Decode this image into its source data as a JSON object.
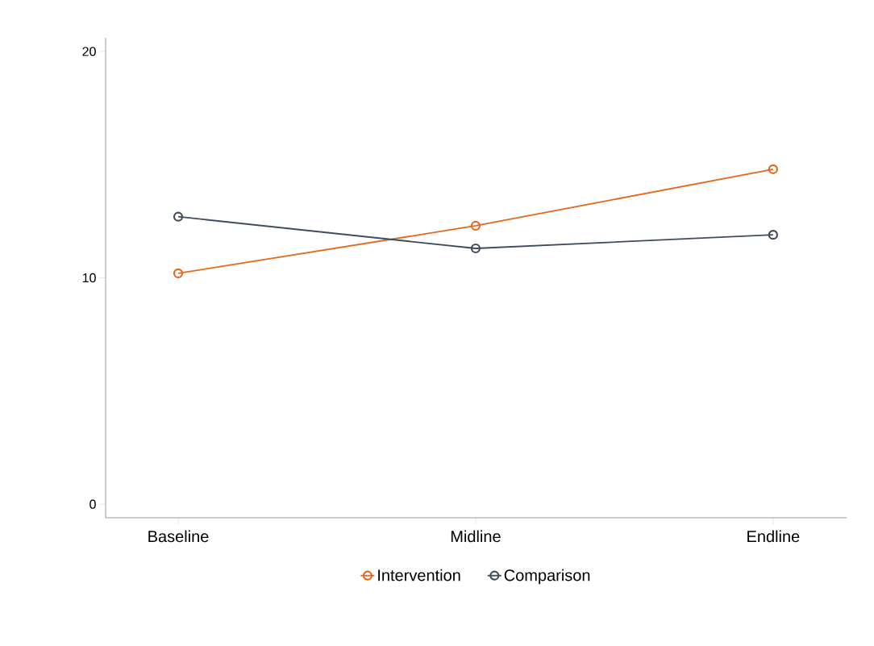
{
  "chart_data": {
    "type": "line",
    "categories": [
      "Baseline",
      "Midline",
      "Endline"
    ],
    "series": [
      {
        "name": "Intervention",
        "color": "#e3691e",
        "values": [
          10.2,
          12.3,
          14.8
        ]
      },
      {
        "name": "Comparison",
        "color": "#3f4b5e",
        "values": [
          12.7,
          11.3,
          11.9
        ]
      }
    ],
    "ylim": [
      -0.6,
      20.6
    ],
    "yticks": [
      0,
      10,
      20
    ],
    "legend": "bottom",
    "marker": "circle",
    "line_style": "solid"
  }
}
